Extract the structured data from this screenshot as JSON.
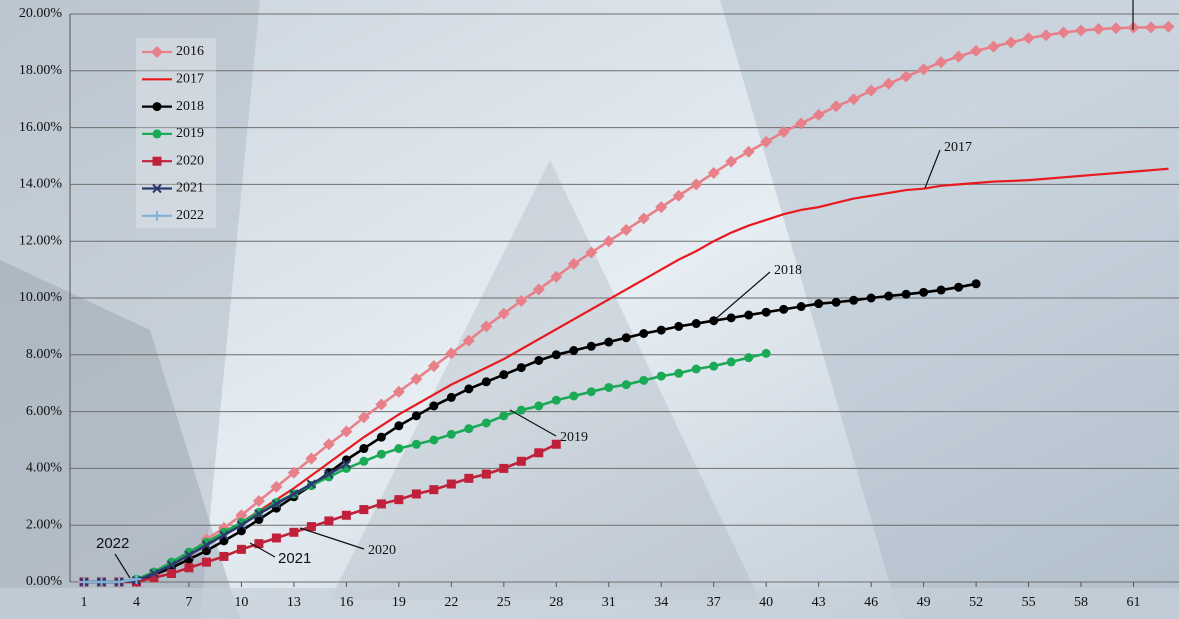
{
  "chart_data": {
    "type": "line",
    "x": [
      1,
      2,
      3,
      4,
      5,
      6,
      7,
      8,
      9,
      10,
      11,
      12,
      13,
      14,
      15,
      16,
      17,
      18,
      19,
      20,
      21,
      22,
      23,
      24,
      25,
      26,
      27,
      28,
      29,
      30,
      31,
      32,
      33,
      34,
      35,
      36,
      37,
      38,
      39,
      40,
      41,
      42,
      43,
      44,
      45,
      46,
      47,
      48,
      49,
      50,
      51,
      52,
      53,
      54,
      55,
      56,
      57,
      58,
      59,
      60,
      61,
      62,
      63
    ],
    "xlim": [
      0.2,
      63.6
    ],
    "xticks": [
      1,
      4,
      7,
      10,
      13,
      16,
      19,
      22,
      25,
      28,
      31,
      34,
      37,
      40,
      43,
      46,
      49,
      52,
      55,
      58,
      61
    ],
    "ylim": [
      0,
      20
    ],
    "yticks": [
      {
        "value": 0,
        "label": "0.00%"
      },
      {
        "value": 2,
        "label": "2.00%"
      },
      {
        "value": 4,
        "label": "4.00%"
      },
      {
        "value": 6,
        "label": "6.00%"
      },
      {
        "value": 8,
        "label": "8.00%"
      },
      {
        "value": 10,
        "label": "10.00%"
      },
      {
        "value": 12,
        "label": "12.00%"
      },
      {
        "value": 14,
        "label": "14.00%"
      },
      {
        "value": 16,
        "label": "16.00%"
      },
      {
        "value": 18,
        "label": "18.00%"
      },
      {
        "value": 20,
        "label": "20.00%"
      }
    ],
    "grid": true,
    "legend": "top-left",
    "series": [
      {
        "name": "2016",
        "color": "#e8808a",
        "marker": "diamond",
        "values": [
          0,
          0,
          0,
          0.05,
          0.3,
          0.6,
          0.95,
          1.5,
          1.9,
          2.35,
          2.85,
          3.35,
          3.85,
          4.35,
          4.85,
          5.3,
          5.8,
          6.25,
          6.7,
          7.15,
          7.6,
          8.05,
          8.5,
          9.0,
          9.45,
          9.9,
          10.3,
          10.75,
          11.2,
          11.6,
          12.0,
          12.4,
          12.8,
          13.2,
          13.6,
          14.0,
          14.4,
          14.8,
          15.15,
          15.5,
          15.85,
          16.15,
          16.45,
          16.75,
          17.0,
          17.3,
          17.55,
          17.8,
          18.05,
          18.3,
          18.5,
          18.7,
          18.85,
          19.0,
          19.15,
          19.25,
          19.35,
          19.42,
          19.47,
          19.5,
          19.52,
          19.53,
          19.55
        ]
      },
      {
        "name": "2017",
        "color": "#e8191f",
        "marker": "none",
        "values": [
          0,
          0,
          0,
          0.05,
          0.3,
          0.6,
          0.95,
          1.3,
          1.7,
          2.1,
          2.5,
          2.9,
          3.3,
          3.75,
          4.2,
          4.65,
          5.1,
          5.5,
          5.9,
          6.25,
          6.6,
          6.95,
          7.25,
          7.55,
          7.85,
          8.2,
          8.55,
          8.9,
          9.25,
          9.6,
          9.95,
          10.3,
          10.65,
          11.0,
          11.35,
          11.65,
          12.0,
          12.3,
          12.55,
          12.75,
          12.95,
          13.1,
          13.2,
          13.35,
          13.5,
          13.6,
          13.7,
          13.8,
          13.85,
          13.95,
          14.0,
          14.05,
          14.1,
          14.12,
          14.15,
          14.2,
          14.25,
          14.3,
          14.35,
          14.4,
          14.45,
          14.5,
          14.55
        ]
      },
      {
        "name": "2018",
        "color": "#000000",
        "marker": "circle",
        "values": [
          0,
          0,
          0,
          0.05,
          0.25,
          0.5,
          0.8,
          1.1,
          1.45,
          1.8,
          2.2,
          2.6,
          3.0,
          3.4,
          3.85,
          4.3,
          4.7,
          5.1,
          5.5,
          5.85,
          6.2,
          6.5,
          6.8,
          7.05,
          7.3,
          7.55,
          7.8,
          8.0,
          8.15,
          8.3,
          8.45,
          8.6,
          8.75,
          8.87,
          9.0,
          9.1,
          9.2,
          9.3,
          9.4,
          9.5,
          9.6,
          9.7,
          9.8,
          9.85,
          9.92,
          10.0,
          10.07,
          10.13,
          10.2,
          10.28,
          10.38,
          10.5,
          null,
          null,
          null,
          null,
          null,
          null,
          null,
          null,
          null,
          null,
          null
        ]
      },
      {
        "name": "2019",
        "color": "#1aaa55",
        "marker": "circle",
        "values": [
          0,
          0,
          0,
          0.1,
          0.35,
          0.7,
          1.05,
          1.4,
          1.75,
          2.1,
          2.45,
          2.8,
          3.1,
          3.4,
          3.7,
          4.0,
          4.25,
          4.5,
          4.7,
          4.85,
          5.0,
          5.2,
          5.4,
          5.6,
          5.85,
          6.05,
          6.2,
          6.4,
          6.55,
          6.7,
          6.85,
          6.95,
          7.1,
          7.25,
          7.35,
          7.5,
          7.6,
          7.75,
          7.9,
          8.05,
          null,
          null,
          null,
          null,
          null,
          null,
          null,
          null,
          null,
          null,
          null,
          null,
          null,
          null,
          null,
          null,
          null,
          null,
          null,
          null,
          null,
          null,
          null
        ]
      },
      {
        "name": "2020",
        "color": "#c0203a",
        "marker": "square",
        "values": [
          0,
          0,
          0,
          0,
          0.15,
          0.3,
          0.5,
          0.7,
          0.9,
          1.15,
          1.35,
          1.55,
          1.75,
          1.95,
          2.15,
          2.35,
          2.55,
          2.75,
          2.9,
          3.1,
          3.25,
          3.45,
          3.65,
          3.8,
          4.0,
          4.25,
          4.55,
          4.85,
          null,
          null,
          null,
          null,
          null,
          null,
          null,
          null,
          null,
          null,
          null,
          null,
          null,
          null,
          null,
          null,
          null,
          null,
          null,
          null,
          null,
          null,
          null,
          null,
          null,
          null,
          null,
          null,
          null,
          null,
          null,
          null,
          null,
          null,
          null
        ]
      },
      {
        "name": "2021",
        "color": "#2e3a6e",
        "marker": "x",
        "values": [
          0,
          0,
          0,
          0.05,
          0.3,
          0.6,
          0.95,
          1.3,
          1.65,
          2.0,
          2.4,
          2.75,
          3.1,
          3.45,
          3.8,
          4.15,
          null,
          null,
          null,
          null,
          null,
          null,
          null,
          null,
          null,
          null,
          null,
          null,
          null,
          null,
          null,
          null,
          null,
          null,
          null,
          null,
          null,
          null,
          null,
          null,
          null,
          null,
          null,
          null,
          null,
          null,
          null,
          null,
          null,
          null,
          null,
          null,
          null,
          null,
          null,
          null,
          null,
          null,
          null,
          null,
          null,
          null,
          null
        ]
      },
      {
        "name": "2022",
        "color": "#7fb2d6",
        "marker": "plus",
        "values": [
          0,
          0,
          0,
          0.1,
          null,
          null,
          null,
          null,
          null,
          null,
          null,
          null,
          null,
          null,
          null,
          null,
          null,
          null,
          null,
          null,
          null,
          null,
          null,
          null,
          null,
          null,
          null,
          null,
          null,
          null,
          null,
          null,
          null,
          null,
          null,
          null,
          null,
          null,
          null,
          null,
          null,
          null,
          null,
          null,
          null,
          null,
          null,
          null,
          null,
          null,
          null,
          null,
          null,
          null,
          null,
          null,
          null,
          null,
          null,
          null,
          null,
          null,
          null
        ]
      }
    ],
    "annotations": [
      "2017",
      "2018",
      "2019",
      "2020",
      "2021",
      "2022"
    ]
  }
}
